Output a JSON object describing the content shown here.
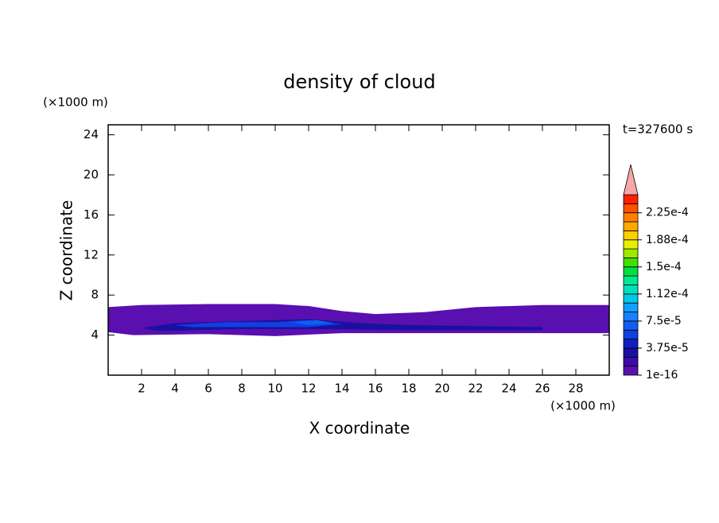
{
  "chart_data": {
    "type": "contour",
    "title": "density of cloud",
    "x_label": "X coordinate",
    "y_label": "Z coordinate",
    "x_unit": "(×1000 m)",
    "y_unit": "(×1000 m)",
    "time_label": "t=327600 s",
    "xlim": [
      0,
      30
    ],
    "ylim": [
      0,
      25
    ],
    "xticks": [
      2,
      4,
      6,
      8,
      10,
      12,
      14,
      16,
      18,
      20,
      22,
      24,
      26,
      28
    ],
    "yticks": [
      4,
      8,
      12,
      16,
      20,
      24
    ],
    "colorbar": {
      "lim": [
        1e-16,
        0.00025
      ],
      "colors": [
        "#5a0fb0",
        "#3a0ca8",
        "#1a10a0",
        "#1020c0",
        "#1040e0",
        "#1060f0",
        "#1a80ff",
        "#10a0ff",
        "#00c8e8",
        "#00e0c0",
        "#00e890",
        "#00e040",
        "#40e000",
        "#a0e800",
        "#e8f000",
        "#ffd000",
        "#ffa800",
        "#ff8000",
        "#ff5000",
        "#ff2000"
      ],
      "over_color": "#f4a8a8",
      "ticks": [
        {
          "value": 1e-16,
          "label": "1e-16"
        },
        {
          "value": 3.75e-05,
          "label": "3.75e-5"
        },
        {
          "value": 7.5e-05,
          "label": "7.5e-5"
        },
        {
          "value": 0.0001125,
          "label": "1.12e-4"
        },
        {
          "value": 0.00015,
          "label": "1.5e-4"
        },
        {
          "value": 0.0001875,
          "label": "1.88e-4"
        },
        {
          "value": 0.000225,
          "label": "2.25e-4"
        }
      ]
    },
    "regions": [
      {
        "level": 1e-16,
        "points": [
          [
            0,
            6.8
          ],
          [
            2,
            7.0
          ],
          [
            6,
            7.1
          ],
          [
            10,
            7.1
          ],
          [
            12,
            6.9
          ],
          [
            14,
            6.4
          ],
          [
            16,
            6.1
          ],
          [
            19,
            6.3
          ],
          [
            22,
            6.8
          ],
          [
            26,
            7.0
          ],
          [
            30,
            7.0
          ],
          [
            30,
            4.2
          ],
          [
            20,
            4.2
          ],
          [
            14,
            4.2
          ],
          [
            10,
            3.9
          ],
          [
            6,
            4.1
          ],
          [
            1.5,
            4.0
          ],
          [
            0,
            4.3
          ]
        ]
      },
      {
        "level": 2.5e-05,
        "points": [
          [
            2,
            4.7
          ],
          [
            4,
            5.2
          ],
          [
            8,
            5.4
          ],
          [
            12,
            5.6
          ],
          [
            15,
            5.2
          ],
          [
            18,
            5.0
          ],
          [
            22,
            4.9
          ],
          [
            26,
            4.8
          ],
          [
            26,
            4.5
          ],
          [
            18,
            4.5
          ],
          [
            13,
            4.6
          ],
          [
            8,
            4.6
          ],
          [
            3,
            4.4
          ]
        ]
      },
      {
        "level": 5e-05,
        "points": [
          [
            4,
            5.0
          ],
          [
            7,
            5.3
          ],
          [
            10,
            5.3
          ],
          [
            12,
            5.5
          ],
          [
            14,
            5.1
          ],
          [
            12,
            4.8
          ],
          [
            8,
            4.8
          ],
          [
            5,
            4.8
          ]
        ]
      },
      {
        "level": 6.25e-05,
        "points": [
          [
            11,
            5.3
          ],
          [
            12.5,
            5.5
          ],
          [
            13.5,
            5.2
          ],
          [
            12,
            5.0
          ]
        ]
      }
    ]
  }
}
